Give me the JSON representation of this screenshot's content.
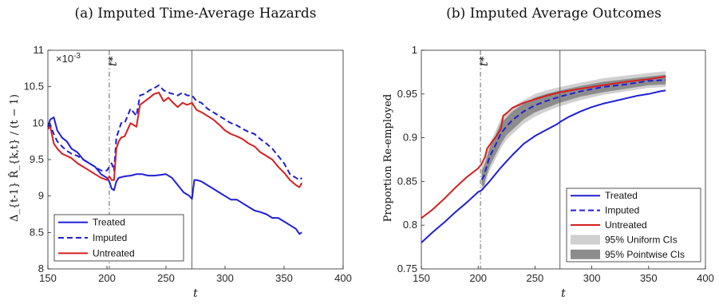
{
  "chart_data": [
    {
      "type": "line",
      "title": "(a) Imputed Time-Average Hazards",
      "xlabel": "t",
      "ylabel": "Δ_{t-1} R̂_{k,t} / (t − 1)",
      "xlim": [
        150,
        400
      ],
      "ylim": [
        8.0,
        11.0
      ],
      "y_multiplier": "×10",
      "y_multiplier_exp": "-3",
      "xticks": [
        "150",
        "200",
        "250",
        "300",
        "350",
        "400"
      ],
      "yticks": [
        "8",
        "8.5",
        "9",
        "9.5",
        "10",
        "10.5",
        "11"
      ],
      "vlines": [
        {
          "x": 202,
          "style": "dashdot",
          "label": "t*"
        },
        {
          "x": 272,
          "style": "solid",
          "label": ""
        }
      ],
      "legend_position": "bottom-left",
      "series": [
        {
          "name": "Treated",
          "color": "#1f1fd6",
          "dash": "solid",
          "x": [
            150,
            152,
            155,
            158,
            162,
            166,
            170,
            175,
            180,
            185,
            190,
            195,
            200,
            202,
            204,
            206,
            208,
            210,
            215,
            220,
            225,
            230,
            235,
            240,
            245,
            250,
            255,
            260,
            265,
            270,
            272,
            274,
            276,
            280,
            285,
            290,
            295,
            300,
            305,
            310,
            315,
            320,
            325,
            330,
            335,
            340,
            345,
            350,
            355,
            360,
            363,
            365
          ],
          "y": [
            9.95,
            10.05,
            10.08,
            9.9,
            9.8,
            9.75,
            9.65,
            9.6,
            9.5,
            9.45,
            9.4,
            9.3,
            9.25,
            9.2,
            9.1,
            9.08,
            9.2,
            9.25,
            9.27,
            9.28,
            9.3,
            9.3,
            9.28,
            9.28,
            9.29,
            9.3,
            9.25,
            9.15,
            9.05,
            9.0,
            8.96,
            9.22,
            9.22,
            9.2,
            9.15,
            9.1,
            9.05,
            9.0,
            8.95,
            8.95,
            8.9,
            8.85,
            8.8,
            8.78,
            8.75,
            8.7,
            8.7,
            8.65,
            8.6,
            8.55,
            8.48,
            8.5
          ]
        },
        {
          "name": "Imputed",
          "color": "#1f1fd6",
          "dash": "dashed",
          "x": [
            150,
            152,
            155,
            158,
            162,
            166,
            170,
            175,
            180,
            185,
            190,
            195,
            200,
            202,
            204,
            206,
            208,
            210,
            212,
            215,
            220,
            225,
            228,
            232,
            236,
            240,
            244,
            248,
            252,
            256,
            260,
            264,
            268,
            272,
            276,
            280,
            285,
            290,
            295,
            300,
            305,
            310,
            315,
            320,
            325,
            330,
            335,
            340,
            345,
            350,
            355,
            360,
            363,
            365
          ],
          "y": [
            9.95,
            9.98,
            9.85,
            9.75,
            9.68,
            9.62,
            9.58,
            9.55,
            9.5,
            9.45,
            9.4,
            9.35,
            9.35,
            9.4,
            9.45,
            9.35,
            9.8,
            9.9,
            10.0,
            10.0,
            10.2,
            10.1,
            10.38,
            10.4,
            10.45,
            10.48,
            10.52,
            10.45,
            10.42,
            10.4,
            10.38,
            10.42,
            10.38,
            10.38,
            10.3,
            10.28,
            10.2,
            10.15,
            10.1,
            10.05,
            10.0,
            9.97,
            9.92,
            9.88,
            9.85,
            9.78,
            9.72,
            9.65,
            9.55,
            9.45,
            9.3,
            9.25,
            9.22,
            9.25
          ]
        },
        {
          "name": "Untreated",
          "color": "#d42020",
          "dash": "solid",
          "x": [
            150,
            152,
            155,
            158,
            162,
            166,
            170,
            175,
            180,
            185,
            190,
            195,
            200,
            202,
            204,
            206,
            208,
            210,
            212,
            215,
            220,
            225,
            228,
            232,
            236,
            240,
            244,
            248,
            252,
            256,
            260,
            264,
            268,
            272,
            276,
            280,
            285,
            290,
            295,
            300,
            305,
            310,
            315,
            320,
            325,
            330,
            335,
            340,
            345,
            350,
            355,
            360,
            363,
            365
          ],
          "y": [
            9.92,
            9.95,
            9.72,
            9.65,
            9.58,
            9.55,
            9.52,
            9.45,
            9.4,
            9.35,
            9.3,
            9.25,
            9.22,
            9.27,
            9.22,
            9.22,
            9.65,
            9.75,
            9.8,
            9.82,
            10.0,
            9.95,
            10.25,
            10.3,
            10.35,
            10.4,
            10.42,
            10.3,
            10.35,
            10.28,
            10.22,
            10.28,
            10.25,
            10.28,
            10.18,
            10.15,
            10.1,
            10.05,
            9.98,
            9.9,
            9.85,
            9.82,
            9.78,
            9.72,
            9.68,
            9.6,
            9.55,
            9.5,
            9.4,
            9.32,
            9.22,
            9.15,
            9.12,
            9.18
          ]
        }
      ]
    },
    {
      "type": "line",
      "title": "(b) Imputed Average Outcomes",
      "xlabel": "t",
      "ylabel": "Proportion Re-employed",
      "xlim": [
        150,
        400
      ],
      "ylim": [
        0.75,
        1.0
      ],
      "xticks": [
        "150",
        "200",
        "250",
        "300",
        "350",
        "400"
      ],
      "yticks": [
        "0.75",
        "0.8",
        "0.85",
        "0.9",
        "0.95",
        "1"
      ],
      "vlines": [
        {
          "x": 202,
          "style": "dashdot",
          "label": "t*"
        },
        {
          "x": 272,
          "style": "solid",
          "label": ""
        }
      ],
      "legend_position": "bottom-right",
      "bands": [
        {
          "name": "95% Uniform CIs",
          "color": "#d0d0d0",
          "x": [
            203,
            205,
            207,
            210,
            215,
            220,
            225,
            230,
            240,
            250,
            260,
            272,
            290,
            310,
            330,
            350,
            365
          ],
          "lower": [
            0.84,
            0.84,
            0.85,
            0.862,
            0.875,
            0.888,
            0.898,
            0.904,
            0.916,
            0.924,
            0.93,
            0.936,
            0.943,
            0.949,
            0.953,
            0.957,
            0.958
          ],
          "upper": [
            0.868,
            0.872,
            0.88,
            0.893,
            0.907,
            0.922,
            0.928,
            0.935,
            0.943,
            0.95,
            0.954,
            0.958,
            0.963,
            0.968,
            0.971,
            0.974,
            0.976
          ]
        },
        {
          "name": "95% Pointwise CIs",
          "color": "#8c8c8c",
          "x": [
            203,
            205,
            207,
            210,
            215,
            220,
            225,
            230,
            240,
            250,
            260,
            272,
            290,
            310,
            330,
            350,
            365
          ],
          "lower": [
            0.845,
            0.845,
            0.855,
            0.867,
            0.88,
            0.893,
            0.903,
            0.909,
            0.921,
            0.929,
            0.934,
            0.94,
            0.947,
            0.952,
            0.956,
            0.96,
            0.961
          ],
          "upper": [
            0.863,
            0.867,
            0.875,
            0.888,
            0.902,
            0.917,
            0.923,
            0.93,
            0.939,
            0.946,
            0.95,
            0.954,
            0.959,
            0.964,
            0.967,
            0.97,
            0.972
          ]
        }
      ],
      "series": [
        {
          "name": "Treated",
          "color": "#1f1fd6",
          "dash": "solid",
          "x": [
            150,
            160,
            170,
            180,
            190,
            200,
            203,
            210,
            220,
            230,
            240,
            250,
            260,
            270,
            272,
            280,
            290,
            300,
            310,
            320,
            330,
            340,
            350,
            360,
            365
          ],
          "y": [
            0.78,
            0.792,
            0.803,
            0.815,
            0.826,
            0.838,
            0.84,
            0.85,
            0.866,
            0.88,
            0.893,
            0.902,
            0.909,
            0.916,
            0.918,
            0.924,
            0.93,
            0.935,
            0.939,
            0.942,
            0.945,
            0.948,
            0.95,
            0.953,
            0.954
          ]
        },
        {
          "name": "Imputed",
          "color": "#1f1fd6",
          "dash": "dashed",
          "x": [
            203,
            205,
            207,
            210,
            215,
            220,
            225,
            230,
            240,
            250,
            260,
            272,
            290,
            310,
            330,
            350,
            365
          ],
          "y": [
            0.852,
            0.856,
            0.865,
            0.878,
            0.891,
            0.905,
            0.913,
            0.92,
            0.93,
            0.937,
            0.942,
            0.947,
            0.953,
            0.958,
            0.961,
            0.965,
            0.966
          ]
        },
        {
          "name": "Untreated",
          "color": "#d42020",
          "dash": "solid",
          "x": [
            150,
            160,
            170,
            180,
            190,
            200,
            203,
            206,
            208,
            212,
            216,
            220,
            222,
            225,
            230,
            240,
            250,
            260,
            272,
            290,
            310,
            330,
            350,
            365
          ],
          "y": [
            0.808,
            0.818,
            0.83,
            0.843,
            0.855,
            0.865,
            0.87,
            0.878,
            0.888,
            0.895,
            0.902,
            0.91,
            0.925,
            0.928,
            0.934,
            0.94,
            0.944,
            0.948,
            0.952,
            0.956,
            0.96,
            0.964,
            0.967,
            0.97
          ]
        }
      ]
    }
  ]
}
